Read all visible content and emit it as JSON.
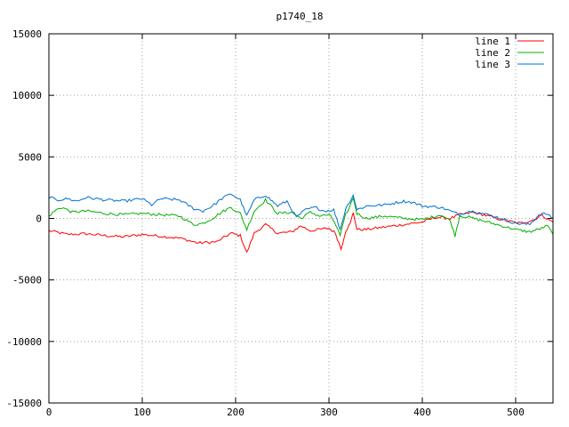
{
  "chart_data": {
    "type": "line",
    "title": "p1740_18",
    "xlabel": "",
    "ylabel": "",
    "xlim": [
      0,
      540
    ],
    "ylim": [
      -15000,
      15000
    ],
    "xticks": [
      0,
      100,
      200,
      300,
      400,
      500
    ],
    "yticks": [
      -15000,
      -10000,
      -5000,
      0,
      5000,
      10000,
      15000
    ],
    "grid": true,
    "legend": "top-right",
    "series": [
      {
        "name": "line 1",
        "color": "#ff0000",
        "points": [
          [
            0,
            -1000
          ],
          [
            20,
            -1300
          ],
          [
            40,
            -1250
          ],
          [
            60,
            -1400
          ],
          [
            80,
            -1500
          ],
          [
            100,
            -1300
          ],
          [
            120,
            -1450
          ],
          [
            140,
            -1600
          ],
          [
            160,
            -2000
          ],
          [
            180,
            -1900
          ],
          [
            195,
            -1200
          ],
          [
            205,
            -1400
          ],
          [
            212,
            -2800
          ],
          [
            220,
            -1200
          ],
          [
            232,
            -500
          ],
          [
            245,
            -1200
          ],
          [
            260,
            -1100
          ],
          [
            270,
            -600
          ],
          [
            280,
            -1000
          ],
          [
            290,
            -900
          ],
          [
            300,
            -800
          ],
          [
            307,
            -1200
          ],
          [
            313,
            -2500
          ],
          [
            318,
            -1000
          ],
          [
            323,
            -400
          ],
          [
            326,
            500
          ],
          [
            330,
            -900
          ],
          [
            340,
            -900
          ],
          [
            360,
            -700
          ],
          [
            380,
            -500
          ],
          [
            400,
            -300
          ],
          [
            415,
            100
          ],
          [
            430,
            0
          ],
          [
            440,
            300
          ],
          [
            455,
            500
          ],
          [
            470,
            200
          ],
          [
            490,
            -200
          ],
          [
            505,
            -400
          ],
          [
            520,
            -100
          ],
          [
            528,
            300
          ],
          [
            535,
            -100
          ],
          [
            540,
            -300
          ]
        ]
      },
      {
        "name": "line 2",
        "color": "#00b000",
        "points": [
          [
            0,
            200
          ],
          [
            8,
            700
          ],
          [
            14,
            900
          ],
          [
            25,
            500
          ],
          [
            40,
            600
          ],
          [
            60,
            400
          ],
          [
            80,
            300
          ],
          [
            100,
            400
          ],
          [
            120,
            300
          ],
          [
            140,
            200
          ],
          [
            155,
            -500
          ],
          [
            165,
            -400
          ],
          [
            175,
            0
          ],
          [
            185,
            500
          ],
          [
            195,
            900
          ],
          [
            205,
            400
          ],
          [
            212,
            -900
          ],
          [
            220,
            600
          ],
          [
            232,
            1500
          ],
          [
            245,
            400
          ],
          [
            260,
            500
          ],
          [
            270,
            0
          ],
          [
            280,
            500
          ],
          [
            290,
            200
          ],
          [
            300,
            300
          ],
          [
            306,
            -300
          ],
          [
            312,
            -1400
          ],
          [
            318,
            300
          ],
          [
            322,
            900
          ],
          [
            326,
            1700
          ],
          [
            330,
            400
          ],
          [
            340,
            0
          ],
          [
            360,
            200
          ],
          [
            380,
            0
          ],
          [
            400,
            -100
          ],
          [
            420,
            300
          ],
          [
            430,
            -200
          ],
          [
            435,
            -1400
          ],
          [
            440,
            200
          ],
          [
            450,
            100
          ],
          [
            460,
            -100
          ],
          [
            480,
            -500
          ],
          [
            500,
            -900
          ],
          [
            515,
            -1100
          ],
          [
            528,
            -800
          ],
          [
            534,
            -600
          ],
          [
            540,
            -1300
          ]
        ]
      },
      {
        "name": "line 3",
        "color": "#0070d0",
        "points": [
          [
            0,
            1700
          ],
          [
            10,
            1500
          ],
          [
            20,
            1600
          ],
          [
            30,
            1400
          ],
          [
            40,
            1700
          ],
          [
            60,
            1500
          ],
          [
            80,
            1400
          ],
          [
            100,
            1600
          ],
          [
            110,
            1100
          ],
          [
            120,
            1600
          ],
          [
            140,
            1500
          ],
          [
            155,
            800
          ],
          [
            165,
            600
          ],
          [
            175,
            1000
          ],
          [
            185,
            1600
          ],
          [
            195,
            2000
          ],
          [
            205,
            1500
          ],
          [
            212,
            200
          ],
          [
            220,
            1500
          ],
          [
            232,
            1900
          ],
          [
            245,
            1000
          ],
          [
            255,
            1400
          ],
          [
            265,
            100
          ],
          [
            275,
            700
          ],
          [
            285,
            900
          ],
          [
            295,
            600
          ],
          [
            305,
            700
          ],
          [
            312,
            -900
          ],
          [
            318,
            800
          ],
          [
            326,
            1900
          ],
          [
            330,
            700
          ],
          [
            340,
            1000
          ],
          [
            360,
            1100
          ],
          [
            380,
            1400
          ],
          [
            390,
            1300
          ],
          [
            400,
            1000
          ],
          [
            420,
            900
          ],
          [
            430,
            600
          ],
          [
            440,
            300
          ],
          [
            450,
            600
          ],
          [
            460,
            500
          ],
          [
            480,
            100
          ],
          [
            500,
            -400
          ],
          [
            515,
            -500
          ],
          [
            525,
            300
          ],
          [
            532,
            400
          ],
          [
            540,
            0
          ]
        ]
      }
    ]
  }
}
